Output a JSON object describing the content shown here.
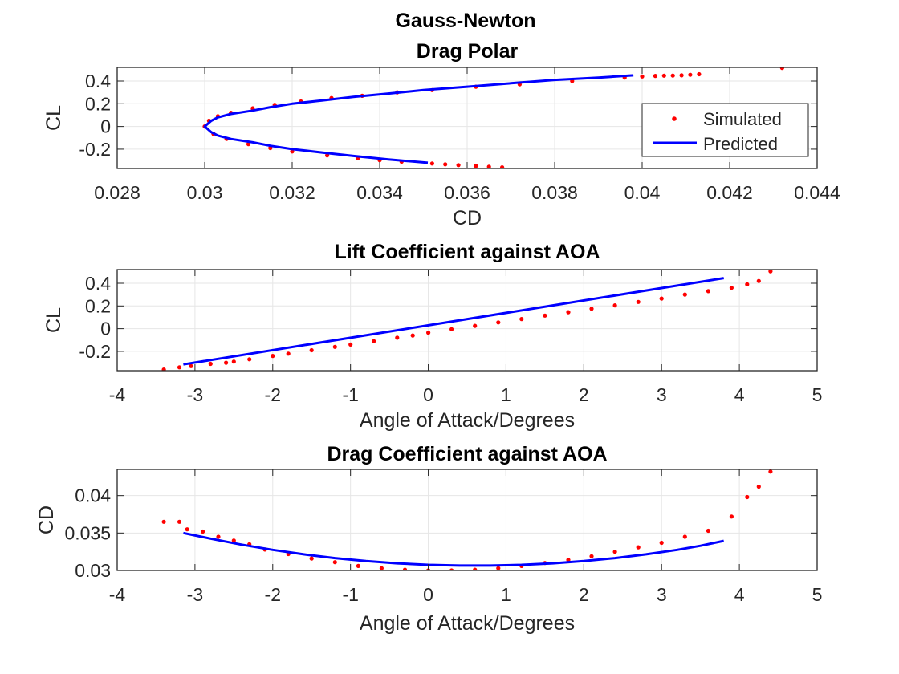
{
  "figure": {
    "suptitle": "Gauss-Newton",
    "colors": {
      "simulated": "#ff0000",
      "predicted": "#0000ff",
      "grid": "#e6e6e6",
      "axis": "#262626"
    }
  },
  "chart_data": [
    {
      "type": "scatter",
      "title": "Drag Polar",
      "xlabel": "CD",
      "ylabel": "CL",
      "xlim": [
        0.028,
        0.044
      ],
      "ylim": [
        -0.37,
        0.52
      ],
      "xticks": [
        0.028,
        0.03,
        0.032,
        0.034,
        0.036,
        0.038,
        0.04,
        0.042,
        0.044
      ],
      "xtick_labels": [
        "0.028",
        "0.03",
        "0.032",
        "0.034",
        "0.036",
        "0.038",
        "0.04",
        "0.042",
        "0.044"
      ],
      "yticks": [
        -0.2,
        0,
        0.2,
        0.4
      ],
      "ytick_labels": [
        "-0.2",
        "0",
        "0.2",
        "0.4"
      ],
      "grid": true,
      "legend": {
        "position": "right",
        "entries": [
          "Simulated",
          "Predicted"
        ]
      },
      "series": [
        {
          "name": "Simulated",
          "style": "points",
          "x": [
            0.0368,
            0.0365,
            0.0362,
            0.0358,
            0.0355,
            0.0352,
            0.0345,
            0.034,
            0.0335,
            0.0328,
            0.032,
            0.0315,
            0.031,
            0.0305,
            0.0302,
            0.03,
            0.0301,
            0.0303,
            0.0306,
            0.0311,
            0.0316,
            0.0322,
            0.0329,
            0.0336,
            0.0344,
            0.0352,
            0.0362,
            0.0372,
            0.0384,
            0.0396,
            0.04,
            0.0403,
            0.0405,
            0.0407,
            0.0409,
            0.0411,
            0.0413,
            0.0432
          ],
          "y": [
            -0.36,
            -0.355,
            -0.348,
            -0.34,
            -0.333,
            -0.326,
            -0.31,
            -0.297,
            -0.28,
            -0.255,
            -0.22,
            -0.19,
            -0.155,
            -0.11,
            -0.065,
            0.0,
            0.05,
            0.09,
            0.12,
            0.16,
            0.19,
            0.22,
            0.25,
            0.27,
            0.3,
            0.32,
            0.35,
            0.37,
            0.4,
            0.43,
            0.44,
            0.445,
            0.447,
            0.448,
            0.45,
            0.455,
            0.46,
            0.515
          ]
        },
        {
          "name": "Predicted",
          "style": "line",
          "x": [
            0.0351,
            0.0342,
            0.0334,
            0.0327,
            0.032,
            0.0315,
            0.0311,
            0.0306,
            0.0303,
            0.03015,
            0.03,
            0.03015,
            0.0303,
            0.0306,
            0.0311,
            0.0315,
            0.032,
            0.0327,
            0.0334,
            0.0342,
            0.035,
            0.036,
            0.037,
            0.038,
            0.039,
            0.0398
          ],
          "y": [
            -0.32,
            -0.29,
            -0.26,
            -0.23,
            -0.2,
            -0.17,
            -0.14,
            -0.11,
            -0.08,
            -0.05,
            0.0,
            0.05,
            0.08,
            0.11,
            0.14,
            0.17,
            0.2,
            0.23,
            0.26,
            0.29,
            0.32,
            0.35,
            0.38,
            0.41,
            0.43,
            0.45
          ]
        }
      ]
    },
    {
      "type": "scatter",
      "title": "Lift Coefficient against AOA",
      "xlabel": "Angle of Attack/Degrees",
      "ylabel": "CL",
      "xlim": [
        -4,
        5
      ],
      "ylim": [
        -0.37,
        0.52
      ],
      "xticks": [
        -4,
        -3,
        -2,
        -1,
        0,
        1,
        2,
        3,
        4,
        5
      ],
      "xtick_labels": [
        "-4",
        "-3",
        "-2",
        "-1",
        "0",
        "1",
        "2",
        "3",
        "4",
        "5"
      ],
      "yticks": [
        -0.2,
        0,
        0.2,
        0.4
      ],
      "ytick_labels": [
        "-0.2",
        "0",
        "0.2",
        "0.4"
      ],
      "grid": true,
      "series": [
        {
          "name": "Simulated",
          "style": "points",
          "x": [
            -3.4,
            -3.2,
            -3.05,
            -2.8,
            -2.6,
            -2.5,
            -2.3,
            -2.0,
            -1.8,
            -1.5,
            -1.2,
            -1.0,
            -0.7,
            -0.4,
            -0.2,
            0.0,
            0.3,
            0.6,
            0.9,
            1.2,
            1.5,
            1.8,
            2.1,
            2.4,
            2.7,
            3.0,
            3.3,
            3.6,
            3.9,
            4.1,
            4.25,
            4.4
          ],
          "y": [
            -0.36,
            -0.34,
            -0.33,
            -0.31,
            -0.3,
            -0.29,
            -0.27,
            -0.24,
            -0.22,
            -0.19,
            -0.16,
            -0.14,
            -0.11,
            -0.08,
            -0.06,
            -0.035,
            -0.005,
            0.025,
            0.055,
            0.085,
            0.115,
            0.145,
            0.175,
            0.205,
            0.235,
            0.265,
            0.3,
            0.33,
            0.36,
            0.39,
            0.42,
            0.505
          ]
        },
        {
          "name": "Predicted",
          "style": "line",
          "x": [
            -3.15,
            3.8
          ],
          "y": [
            -0.315,
            0.445
          ]
        }
      ]
    },
    {
      "type": "scatter",
      "title": "Drag Coefficient against AOA",
      "xlabel": "Angle of Attack/Degrees",
      "ylabel": "CD",
      "xlim": [
        -4,
        5
      ],
      "ylim": [
        0.03,
        0.0435
      ],
      "xticks": [
        -4,
        -3,
        -2,
        -1,
        0,
        1,
        2,
        3,
        4,
        5
      ],
      "xtick_labels": [
        "-4",
        "-3",
        "-2",
        "-1",
        "0",
        "1",
        "2",
        "3",
        "4",
        "5"
      ],
      "yticks": [
        0.03,
        0.035,
        0.04
      ],
      "ytick_labels": [
        "0.03",
        "0.035",
        "0.04"
      ],
      "grid": true,
      "series": [
        {
          "name": "Simulated",
          "style": "points",
          "x": [
            -3.4,
            -3.2,
            -3.1,
            -2.9,
            -2.7,
            -2.5,
            -2.3,
            -2.1,
            -1.8,
            -1.5,
            -1.2,
            -0.9,
            -0.6,
            -0.3,
            0.0,
            0.3,
            0.6,
            0.9,
            1.2,
            1.5,
            1.8,
            2.1,
            2.4,
            2.7,
            3.0,
            3.3,
            3.6,
            3.9,
            4.1,
            4.25,
            4.4
          ],
          "y": [
            0.0365,
            0.0365,
            0.0355,
            0.0352,
            0.0345,
            0.034,
            0.0335,
            0.0328,
            0.0322,
            0.0316,
            0.0311,
            0.0306,
            0.0303,
            0.0301,
            0.03,
            0.03,
            0.0301,
            0.0303,
            0.0306,
            0.031,
            0.0314,
            0.0319,
            0.0325,
            0.0331,
            0.0337,
            0.0345,
            0.0353,
            0.0372,
            0.0398,
            0.0412,
            0.0432
          ]
        },
        {
          "name": "Predicted",
          "style": "line",
          "x": [
            -3.15,
            -2.8,
            -2.4,
            -2.0,
            -1.6,
            -1.2,
            -0.8,
            -0.4,
            0.0,
            0.4,
            0.8,
            1.2,
            1.6,
            2.0,
            2.4,
            2.8,
            3.2,
            3.5,
            3.8
          ],
          "y": [
            0.035,
            0.03425,
            0.03345,
            0.03275,
            0.03215,
            0.03165,
            0.03125,
            0.03095,
            0.03075,
            0.03065,
            0.03065,
            0.03075,
            0.03095,
            0.03125,
            0.03165,
            0.03215,
            0.03275,
            0.0333,
            0.03395
          ]
        }
      ]
    }
  ]
}
